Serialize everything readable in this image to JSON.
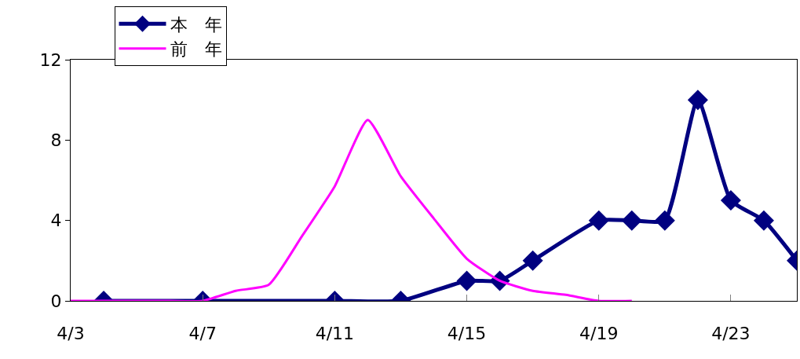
{
  "chart_data": {
    "type": "line",
    "xlim": [
      "--04-03",
      "--04-25"
    ],
    "xticks": [
      {
        "value": "--04-03",
        "label": "4/3"
      },
      {
        "value": "--04-07",
        "label": "4/7"
      },
      {
        "value": "--04-11",
        "label": "4/11"
      },
      {
        "value": "--04-15",
        "label": "4/15"
      },
      {
        "value": "--04-19",
        "label": "4/19"
      },
      {
        "value": "--04-23",
        "label": "4/23"
      }
    ],
    "ylim": [
      0,
      12
    ],
    "yticks": [
      0,
      4,
      8,
      12
    ],
    "legend": "top left",
    "series": [
      {
        "name": "本　年",
        "color": "#000080",
        "marker": "diamond",
        "x": [
          "--04-04",
          "--04-07",
          "--04-11",
          "--04-13",
          "--04-15",
          "--04-16",
          "--04-17",
          "--04-19",
          "--04-20",
          "--04-21",
          "--04-22",
          "--04-23",
          "--04-24",
          "--04-25"
        ],
        "values": [
          0,
          0,
          0,
          0,
          1,
          1,
          2,
          4,
          4,
          4,
          10,
          5,
          4,
          2
        ]
      },
      {
        "name": "前　年",
        "color": "#ff00ff",
        "marker": "none",
        "x": [
          "--04-03",
          "--04-04",
          "--04-05",
          "--04-06",
          "--04-07",
          "--04-08",
          "--04-09",
          "--04-10",
          "--04-11",
          "--04-12",
          "--04-13",
          "--04-14",
          "--04-15",
          "--04-16",
          "--04-17",
          "--04-18",
          "--04-19",
          "--04-20"
        ],
        "values": [
          0,
          0,
          0,
          0,
          0,
          0.5,
          0.8,
          3.2,
          5.7,
          9,
          6.2,
          4.1,
          2.1,
          1,
          0.5,
          0.3,
          0,
          0
        ]
      }
    ]
  }
}
